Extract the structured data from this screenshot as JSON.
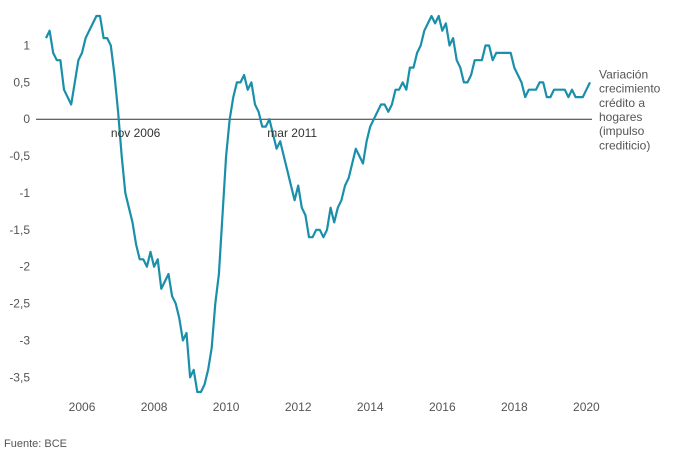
{
  "chart_data": {
    "type": "line",
    "colors": {
      "line": "#1a8faa",
      "zero": "#333333",
      "text": "#555555"
    },
    "ylim": [
      -3.7,
      1.4
    ],
    "xlim": [
      2005.0,
      2020.1
    ],
    "y_ticks": [
      "1",
      "0,5",
      "0",
      "-0,5",
      "-1",
      "-1,5",
      "-2",
      "-2,5",
      "-3",
      "-3,5"
    ],
    "y_tick_values": [
      1,
      0.5,
      0,
      -0.5,
      -1,
      -1.5,
      -2,
      -2.5,
      -3,
      -3.5
    ],
    "x_ticks": [
      "2006",
      "2008",
      "2010",
      "2012",
      "2014",
      "2016",
      "2018",
      "2020"
    ],
    "x_tick_values": [
      2006,
      2008,
      2010,
      2012,
      2014,
      2016,
      2018,
      2020
    ],
    "series": [
      {
        "name": "Variación crecimiento crédito a hogares (impulso crediticio)",
        "points": [
          [
            2005.0,
            1.1
          ],
          [
            2005.1,
            1.2
          ],
          [
            2005.2,
            0.9
          ],
          [
            2005.3,
            0.8
          ],
          [
            2005.4,
            0.8
          ],
          [
            2005.5,
            0.4
          ],
          [
            2005.7,
            0.2
          ],
          [
            2005.9,
            0.8
          ],
          [
            2006.0,
            0.9
          ],
          [
            2006.1,
            1.1
          ],
          [
            2006.2,
            1.2
          ],
          [
            2006.3,
            1.3
          ],
          [
            2006.4,
            1.4
          ],
          [
            2006.5,
            1.4
          ],
          [
            2006.6,
            1.1
          ],
          [
            2006.7,
            1.1
          ],
          [
            2006.8,
            1.0
          ],
          [
            2006.9,
            0.6
          ],
          [
            2007.0,
            0.1
          ],
          [
            2007.1,
            -0.5
          ],
          [
            2007.2,
            -1.0
          ],
          [
            2007.3,
            -1.2
          ],
          [
            2007.4,
            -1.4
          ],
          [
            2007.5,
            -1.7
          ],
          [
            2007.6,
            -1.9
          ],
          [
            2007.7,
            -1.9
          ],
          [
            2007.8,
            -2.0
          ],
          [
            2007.9,
            -1.8
          ],
          [
            2008.0,
            -2.0
          ],
          [
            2008.1,
            -1.9
          ],
          [
            2008.2,
            -2.3
          ],
          [
            2008.3,
            -2.2
          ],
          [
            2008.4,
            -2.1
          ],
          [
            2008.5,
            -2.4
          ],
          [
            2008.6,
            -2.5
          ],
          [
            2008.7,
            -2.7
          ],
          [
            2008.8,
            -3.0
          ],
          [
            2008.9,
            -2.9
          ],
          [
            2009.0,
            -3.5
          ],
          [
            2009.1,
            -3.4
          ],
          [
            2009.2,
            -3.7
          ],
          [
            2009.3,
            -3.7
          ],
          [
            2009.4,
            -3.6
          ],
          [
            2009.5,
            -3.4
          ],
          [
            2009.6,
            -3.1
          ],
          [
            2009.7,
            -2.5
          ],
          [
            2009.8,
            -2.1
          ],
          [
            2009.9,
            -1.3
          ],
          [
            2010.0,
            -0.5
          ],
          [
            2010.1,
            0.0
          ],
          [
            2010.2,
            0.3
          ],
          [
            2010.3,
            0.5
          ],
          [
            2010.4,
            0.5
          ],
          [
            2010.5,
            0.6
          ],
          [
            2010.6,
            0.4
          ],
          [
            2010.7,
            0.5
          ],
          [
            2010.8,
            0.2
          ],
          [
            2010.9,
            0.1
          ],
          [
            2011.0,
            -0.1
          ],
          [
            2011.1,
            -0.1
          ],
          [
            2011.2,
            0.0
          ],
          [
            2011.3,
            -0.2
          ],
          [
            2011.4,
            -0.4
          ],
          [
            2011.5,
            -0.3
          ],
          [
            2011.6,
            -0.5
          ],
          [
            2011.7,
            -0.7
          ],
          [
            2011.8,
            -0.9
          ],
          [
            2011.9,
            -1.1
          ],
          [
            2012.0,
            -0.9
          ],
          [
            2012.1,
            -1.2
          ],
          [
            2012.2,
            -1.3
          ],
          [
            2012.3,
            -1.6
          ],
          [
            2012.4,
            -1.6
          ],
          [
            2012.5,
            -1.5
          ],
          [
            2012.6,
            -1.5
          ],
          [
            2012.7,
            -1.6
          ],
          [
            2012.8,
            -1.5
          ],
          [
            2012.9,
            -1.2
          ],
          [
            2013.0,
            -1.4
          ],
          [
            2013.1,
            -1.2
          ],
          [
            2013.2,
            -1.1
          ],
          [
            2013.3,
            -0.9
          ],
          [
            2013.4,
            -0.8
          ],
          [
            2013.5,
            -0.6
          ],
          [
            2013.6,
            -0.4
          ],
          [
            2013.7,
            -0.5
          ],
          [
            2013.8,
            -0.6
          ],
          [
            2013.9,
            -0.3
          ],
          [
            2014.0,
            -0.1
          ],
          [
            2014.1,
            0.0
          ],
          [
            2014.2,
            0.1
          ],
          [
            2014.3,
            0.2
          ],
          [
            2014.4,
            0.2
          ],
          [
            2014.5,
            0.1
          ],
          [
            2014.6,
            0.2
          ],
          [
            2014.7,
            0.4
          ],
          [
            2014.8,
            0.4
          ],
          [
            2014.9,
            0.5
          ],
          [
            2015.0,
            0.4
          ],
          [
            2015.1,
            0.7
          ],
          [
            2015.2,
            0.7
          ],
          [
            2015.3,
            0.9
          ],
          [
            2015.4,
            1.0
          ],
          [
            2015.5,
            1.2
          ],
          [
            2015.6,
            1.3
          ],
          [
            2015.7,
            1.4
          ],
          [
            2015.8,
            1.3
          ],
          [
            2015.9,
            1.4
          ],
          [
            2016.0,
            1.2
          ],
          [
            2016.1,
            1.3
          ],
          [
            2016.2,
            1.0
          ],
          [
            2016.3,
            1.1
          ],
          [
            2016.4,
            0.8
          ],
          [
            2016.5,
            0.7
          ],
          [
            2016.6,
            0.5
          ],
          [
            2016.7,
            0.5
          ],
          [
            2016.8,
            0.6
          ],
          [
            2016.9,
            0.8
          ],
          [
            2017.0,
            0.8
          ],
          [
            2017.1,
            0.8
          ],
          [
            2017.2,
            1.0
          ],
          [
            2017.3,
            1.0
          ],
          [
            2017.4,
            0.8
          ],
          [
            2017.5,
            0.9
          ],
          [
            2017.6,
            0.9
          ],
          [
            2017.7,
            0.9
          ],
          [
            2017.8,
            0.9
          ],
          [
            2017.9,
            0.9
          ],
          [
            2018.0,
            0.7
          ],
          [
            2018.1,
            0.6
          ],
          [
            2018.2,
            0.5
          ],
          [
            2018.3,
            0.3
          ],
          [
            2018.4,
            0.4
          ],
          [
            2018.5,
            0.4
          ],
          [
            2018.6,
            0.4
          ],
          [
            2018.7,
            0.5
          ],
          [
            2018.8,
            0.5
          ],
          [
            2018.9,
            0.3
          ],
          [
            2019.0,
            0.3
          ],
          [
            2019.1,
            0.4
          ],
          [
            2019.2,
            0.4
          ],
          [
            2019.3,
            0.4
          ],
          [
            2019.4,
            0.4
          ],
          [
            2019.5,
            0.3
          ],
          [
            2019.6,
            0.4
          ],
          [
            2019.7,
            0.3
          ],
          [
            2019.8,
            0.3
          ],
          [
            2019.9,
            0.3
          ],
          [
            2020.0,
            0.4
          ],
          [
            2020.1,
            0.5
          ]
        ]
      }
    ],
    "annotations": [
      {
        "text": "nov 2006",
        "x": 2006.83,
        "y": 0
      },
      {
        "text": "mar 2011",
        "x": 2011.17,
        "y": 0
      }
    ],
    "series_label_lines": [
      "Variación",
      "crecimiento",
      "crédito a",
      "hogares",
      "(impulso",
      "crediticio)"
    ],
    "grid": false,
    "source": "Fuente: BCE"
  }
}
